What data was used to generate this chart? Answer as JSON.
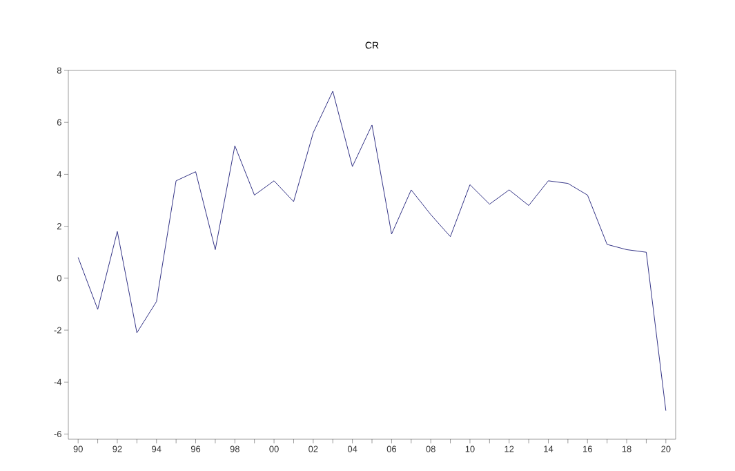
{
  "chart_data": {
    "type": "line",
    "title": "CR",
    "x": [
      1990,
      1991,
      1992,
      1993,
      1994,
      1995,
      1996,
      1997,
      1998,
      1999,
      2000,
      2001,
      2002,
      2003,
      2004,
      2005,
      2006,
      2007,
      2008,
      2009,
      2010,
      2011,
      2012,
      2013,
      2014,
      2015,
      2016,
      2017,
      2018,
      2019,
      2020
    ],
    "series": [
      {
        "color": "#1c1c78",
        "values": [
          0.8,
          -1.2,
          1.8,
          -2.1,
          -0.9,
          3.75,
          4.1,
          1.1,
          5.1,
          3.2,
          3.75,
          2.95,
          5.6,
          7.2,
          4.3,
          5.9,
          1.7,
          3.4,
          2.45,
          1.6,
          3.6,
          2.85,
          3.4,
          2.8,
          3.75,
          3.65,
          3.2,
          1.3,
          1.1,
          1.0,
          -5.1
        ]
      }
    ],
    "xlim": [
      1989.5,
      2020.5
    ],
    "ylim": [
      -6.2,
      8
    ],
    "xticks": [
      {
        "value": 1990,
        "label": "90"
      },
      {
        "value": 1991,
        "label": null
      },
      {
        "value": 1992,
        "label": "92"
      },
      {
        "value": 1993,
        "label": null
      },
      {
        "value": 1994,
        "label": "94"
      },
      {
        "value": 1995,
        "label": null
      },
      {
        "value": 1996,
        "label": "96"
      },
      {
        "value": 1997,
        "label": null
      },
      {
        "value": 1998,
        "label": "98"
      },
      {
        "value": 1999,
        "label": null
      },
      {
        "value": 2000,
        "label": "00"
      },
      {
        "value": 2001,
        "label": null
      },
      {
        "value": 2002,
        "label": "02"
      },
      {
        "value": 2003,
        "label": null
      },
      {
        "value": 2004,
        "label": "04"
      },
      {
        "value": 2005,
        "label": null
      },
      {
        "value": 2006,
        "label": "06"
      },
      {
        "value": 2007,
        "label": null
      },
      {
        "value": 2008,
        "label": "08"
      },
      {
        "value": 2009,
        "label": null
      },
      {
        "value": 2010,
        "label": "10"
      },
      {
        "value": 2011,
        "label": null
      },
      {
        "value": 2012,
        "label": "12"
      },
      {
        "value": 2013,
        "label": null
      },
      {
        "value": 2014,
        "label": "14"
      },
      {
        "value": 2015,
        "label": null
      },
      {
        "value": 2016,
        "label": "16"
      },
      {
        "value": 2017,
        "label": null
      },
      {
        "value": 2018,
        "label": "18"
      },
      {
        "value": 2019,
        "label": null
      },
      {
        "value": 2020,
        "label": "20"
      }
    ],
    "yticks": [
      -6,
      -4,
      -2,
      0,
      2,
      4,
      6,
      8
    ],
    "grid": false,
    "marker": "none",
    "line_style": "solid"
  }
}
